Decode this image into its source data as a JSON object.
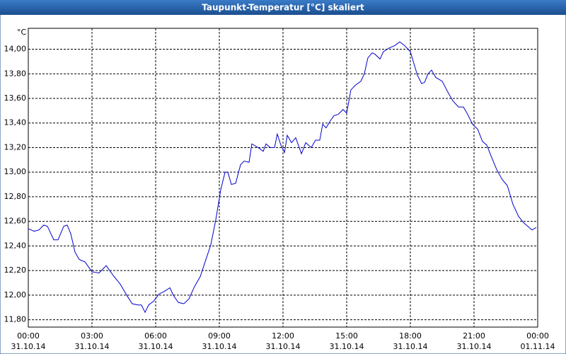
{
  "chart_data": {
    "type": "line",
    "title": "Taupunkt-Temperatur [°C] skaliert",
    "y_unit": "°C",
    "xlim": [
      0,
      24
    ],
    "xticks": [
      {
        "value": 0,
        "label": "00:00",
        "date": "31.10.14"
      },
      {
        "value": 3,
        "label": "03:00",
        "date": "31.10.14"
      },
      {
        "value": 6,
        "label": "06:00",
        "date": "31.10.14"
      },
      {
        "value": 9,
        "label": "09:00",
        "date": "31.10.14"
      },
      {
        "value": 12,
        "label": "12:00",
        "date": "31.10.14"
      },
      {
        "value": 15,
        "label": "15:00",
        "date": "31.10.14"
      },
      {
        "value": 18,
        "label": "18:00",
        "date": "31.10.14"
      },
      {
        "value": 21,
        "label": "21:00",
        "date": "31.10.14"
      },
      {
        "value": 24,
        "label": "00:00",
        "date": "01.11.14"
      }
    ],
    "ylim": [
      11.74,
      14.17
    ],
    "yticks": [
      {
        "value": 11.8,
        "label": "11,80"
      },
      {
        "value": 12.0,
        "label": "12,00"
      },
      {
        "value": 12.2,
        "label": "12,20"
      },
      {
        "value": 12.4,
        "label": "12,40"
      },
      {
        "value": 12.6,
        "label": "12,60"
      },
      {
        "value": 12.8,
        "label": "12,80"
      },
      {
        "value": 13.0,
        "label": "13,00"
      },
      {
        "value": 13.2,
        "label": "13,20"
      },
      {
        "value": 13.4,
        "label": "13,40"
      },
      {
        "value": 13.6,
        "label": "13,60"
      },
      {
        "value": 13.8,
        "label": "13,80"
      },
      {
        "value": 14.0,
        "label": "14,00"
      }
    ],
    "grid": true,
    "series": [
      {
        "color": "#0000cc",
        "x": [
          0,
          0.27,
          0.5,
          0.73,
          0.9,
          1.2,
          1.4,
          1.67,
          1.83,
          2.0,
          2.2,
          2.4,
          2.67,
          3.0,
          3.33,
          3.67,
          4.0,
          4.33,
          4.67,
          4.9,
          5.17,
          5.33,
          5.5,
          5.67,
          5.9,
          6.17,
          6.4,
          6.67,
          6.83,
          7.07,
          7.33,
          7.57,
          7.83,
          8.1,
          8.33,
          8.6,
          8.83,
          9.07,
          9.27,
          9.4,
          9.57,
          9.77,
          10.0,
          10.17,
          10.4,
          10.53,
          10.83,
          11.07,
          11.2,
          11.4,
          11.6,
          11.73,
          11.9,
          12.07,
          12.2,
          12.4,
          12.6,
          12.87,
          13.07,
          13.33,
          13.53,
          13.73,
          13.87,
          14.03,
          14.2,
          14.4,
          14.6,
          14.83,
          15.0,
          15.2,
          15.43,
          15.67,
          15.83,
          16.0,
          16.2,
          16.33,
          16.57,
          16.73,
          17.0,
          17.27,
          17.5,
          17.73,
          18.0,
          18.33,
          18.53,
          18.67,
          18.83,
          19.0,
          19.2,
          19.5,
          19.77,
          20.0,
          20.27,
          20.5,
          20.67,
          20.93,
          21.17,
          21.4,
          21.6,
          21.83,
          22.07,
          22.33,
          22.57,
          22.83,
          23.1,
          23.33,
          23.6,
          23.73,
          23.93
        ],
        "values": [
          12.54,
          12.52,
          12.53,
          12.57,
          12.56,
          12.45,
          12.45,
          12.56,
          12.57,
          12.5,
          12.35,
          12.29,
          12.27,
          12.19,
          12.18,
          12.24,
          12.16,
          12.09,
          11.99,
          11.93,
          11.92,
          11.92,
          11.86,
          11.92,
          11.95,
          12.01,
          12.03,
          12.06,
          12.0,
          11.94,
          11.93,
          11.97,
          12.07,
          12.15,
          12.27,
          12.41,
          12.61,
          12.86,
          13.0,
          13.0,
          12.9,
          12.91,
          13.06,
          13.09,
          13.08,
          13.23,
          13.2,
          13.17,
          13.23,
          13.2,
          13.2,
          13.31,
          13.22,
          13.16,
          13.3,
          13.24,
          13.28,
          13.15,
          13.24,
          13.2,
          13.26,
          13.26,
          13.39,
          13.36,
          13.41,
          13.46,
          13.47,
          13.51,
          13.48,
          13.67,
          13.71,
          13.74,
          13.8,
          13.93,
          13.97,
          13.96,
          13.92,
          13.98,
          14.01,
          14.03,
          14.06,
          14.03,
          13.98,
          13.79,
          13.72,
          13.73,
          13.8,
          13.83,
          13.77,
          13.74,
          13.65,
          13.58,
          13.53,
          13.53,
          13.48,
          13.39,
          13.35,
          13.25,
          13.22,
          13.12,
          13.02,
          12.94,
          12.89,
          12.74,
          12.64,
          12.59,
          12.55,
          12.53,
          12.55
        ]
      }
    ]
  }
}
